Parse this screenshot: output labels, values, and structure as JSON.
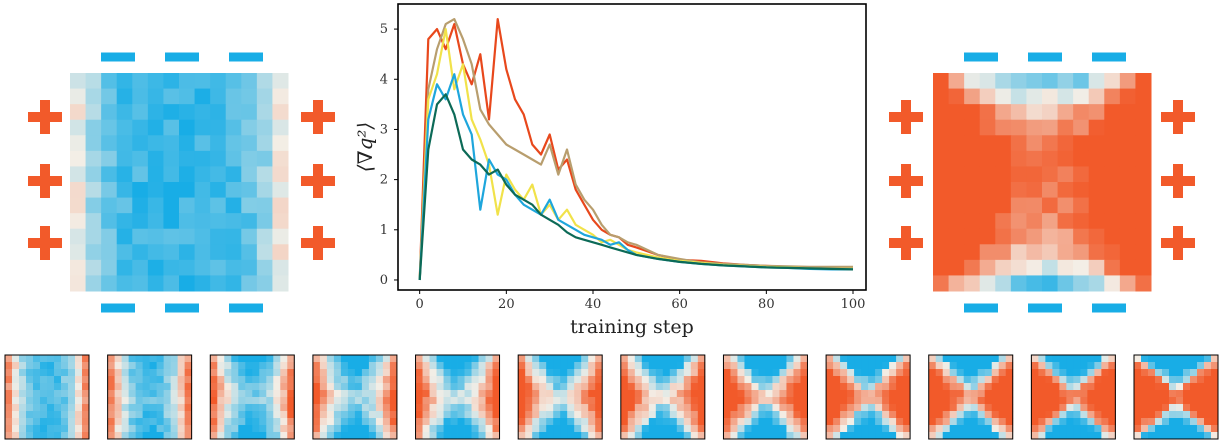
{
  "colors": {
    "negative_blue": "#18ade6",
    "positive_red": "#f25a2a",
    "neutral": "#f3eee6",
    "axes": "#000000"
  },
  "charge_signs": {
    "plus_symbol": "plus-icon",
    "minus_symbol": "minus-icon"
  },
  "heatmaps": {
    "left_large": {
      "pattern": "blue-interior-red-left-right-edges"
    },
    "right_large": {
      "pattern": "red-interior-blue-top-bottom-edges"
    },
    "progression_count": 12
  },
  "chart_data": {
    "type": "line",
    "title": "",
    "xlabel": "training step",
    "ylabel": "⟨∇q²⟩",
    "xlim": [
      -5,
      103
    ],
    "ylim": [
      -0.2,
      5.5
    ],
    "xticks": [
      0,
      20,
      40,
      60,
      80,
      100
    ],
    "yticks": [
      0,
      1,
      2,
      3,
      4,
      5
    ],
    "grid": false,
    "legend": "none",
    "series": [
      {
        "color": "#e8481c",
        "x": [
          0,
          2,
          4,
          6,
          8,
          10,
          12,
          14,
          16,
          18,
          20,
          22,
          24,
          26,
          28,
          30,
          32,
          34,
          36,
          38,
          40,
          42,
          44,
          46,
          48,
          50,
          55,
          60,
          65,
          70,
          75,
          80,
          85,
          90,
          95,
          100
        ],
        "y": [
          0,
          4.8,
          5.0,
          4.6,
          5.1,
          4.3,
          3.9,
          4.5,
          3.2,
          5.2,
          4.2,
          3.6,
          3.3,
          2.7,
          2.5,
          2.9,
          2.2,
          2.4,
          1.8,
          1.5,
          1.2,
          1.0,
          0.9,
          0.85,
          0.7,
          0.65,
          0.5,
          0.4,
          0.38,
          0.33,
          0.3,
          0.28,
          0.26,
          0.25,
          0.24,
          0.24
        ]
      },
      {
        "color": "#b89e6e",
        "x": [
          0,
          2,
          4,
          6,
          8,
          10,
          12,
          14,
          16,
          18,
          20,
          22,
          24,
          26,
          28,
          30,
          32,
          34,
          36,
          38,
          40,
          42,
          44,
          46,
          48,
          50,
          55,
          60,
          65,
          70,
          75,
          80,
          85,
          90,
          95,
          100
        ],
        "y": [
          0,
          3.8,
          4.6,
          5.1,
          5.2,
          4.8,
          4.3,
          3.4,
          3.1,
          2.9,
          2.7,
          2.6,
          2.5,
          2.4,
          2.3,
          2.7,
          2.1,
          2.6,
          1.9,
          1.6,
          1.4,
          1.1,
          0.9,
          0.85,
          0.75,
          0.7,
          0.5,
          0.42,
          0.35,
          0.32,
          0.3,
          0.28,
          0.27,
          0.26,
          0.26,
          0.26
        ]
      },
      {
        "color": "#f1e24a",
        "x": [
          0,
          2,
          4,
          6,
          8,
          10,
          12,
          14,
          16,
          18,
          20,
          22,
          24,
          26,
          28,
          30,
          32,
          34,
          36,
          38,
          40,
          42,
          44,
          46,
          48,
          50,
          55,
          60,
          65,
          70,
          75,
          80,
          85,
          90,
          95,
          100
        ],
        "y": [
          0,
          3.6,
          4.1,
          5.0,
          3.8,
          4.3,
          3.2,
          2.8,
          2.3,
          1.3,
          2.1,
          1.8,
          1.6,
          1.9,
          1.3,
          1.5,
          1.2,
          1.4,
          1.1,
          1.0,
          0.9,
          0.75,
          0.8,
          0.7,
          0.6,
          0.55,
          0.45,
          0.38,
          0.34,
          0.3,
          0.28,
          0.26,
          0.25,
          0.23,
          0.22,
          0.22
        ]
      },
      {
        "color": "#1ea6dc",
        "x": [
          0,
          2,
          4,
          6,
          8,
          10,
          12,
          14,
          16,
          18,
          20,
          22,
          24,
          26,
          28,
          30,
          32,
          34,
          36,
          38,
          40,
          42,
          44,
          46,
          48,
          50,
          55,
          60,
          65,
          70,
          75,
          80,
          85,
          90,
          95,
          100
        ],
        "y": [
          0,
          3.2,
          3.9,
          3.6,
          4.1,
          3.3,
          2.9,
          1.4,
          2.4,
          2.1,
          2.0,
          1.7,
          1.5,
          1.4,
          1.3,
          1.6,
          1.2,
          1.1,
          1.0,
          0.9,
          0.85,
          0.8,
          0.7,
          0.75,
          0.6,
          0.5,
          0.42,
          0.36,
          0.32,
          0.29,
          0.27,
          0.25,
          0.24,
          0.22,
          0.21,
          0.21
        ]
      },
      {
        "color": "#0c6a57",
        "x": [
          0,
          2,
          4,
          6,
          8,
          10,
          12,
          14,
          16,
          18,
          20,
          22,
          24,
          26,
          28,
          30,
          32,
          34,
          36,
          38,
          40,
          42,
          44,
          46,
          48,
          50,
          55,
          60,
          65,
          70,
          75,
          80,
          85,
          90,
          95,
          100
        ],
        "y": [
          0,
          2.6,
          3.5,
          3.7,
          3.3,
          2.6,
          2.4,
          2.3,
          2.1,
          2.2,
          1.9,
          1.7,
          1.6,
          1.5,
          1.3,
          1.2,
          1.1,
          0.95,
          0.85,
          0.8,
          0.75,
          0.7,
          0.65,
          0.6,
          0.55,
          0.5,
          0.42,
          0.36,
          0.32,
          0.29,
          0.27,
          0.25,
          0.24,
          0.23,
          0.22,
          0.21
        ]
      }
    ]
  }
}
